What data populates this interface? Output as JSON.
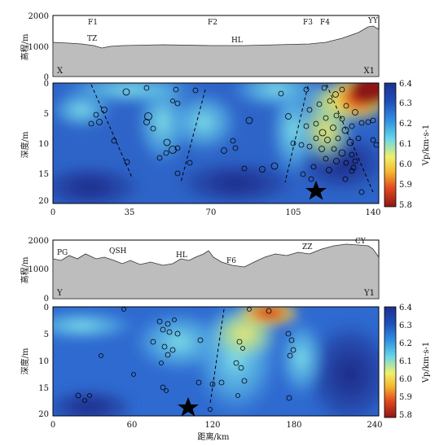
{
  "figure": {
    "panel_top": {
      "profile_name_left": "X",
      "profile_name_right": "X1",
      "elevation_label": "高程/m",
      "depth_label": "深度/m",
      "elevation_ticks": [
        "2000",
        "1000",
        "0"
      ],
      "depth_ticks": [
        "0",
        "5",
        "10",
        "15",
        "20"
      ],
      "x_ticks": [
        "0",
        "35",
        "70",
        "105",
        "140"
      ],
      "faults": [
        "F1",
        "F2",
        "F3",
        "F4"
      ],
      "places": [
        "TZ",
        "HL",
        "YY"
      ],
      "colorbar_label": "Vp/km·s-1",
      "colorbar_ticks": [
        "6.4",
        "6.3",
        "6.2",
        "6.1",
        "6.0",
        "5.9",
        "5.8"
      ]
    },
    "panel_bottom": {
      "profile_name_left": "Y",
      "profile_name_right": "Y1",
      "elevation_label": "高程/m",
      "depth_label": "深度/m",
      "elevation_ticks": [
        "2000",
        "1000",
        "0"
      ],
      "depth_ticks": [
        "0",
        "5",
        "10",
        "15",
        "20"
      ],
      "x_ticks": [
        "0",
        "60",
        "120",
        "180",
        "240"
      ],
      "xlabel": "距离/km",
      "faults": [
        "F6"
      ],
      "places": [
        "PG",
        "QSH",
        "HL",
        "ZZ",
        "CY"
      ],
      "colorbar_label": "Vp/km·s-1",
      "colorbar_ticks": [
        "6.4",
        "6.3",
        "6.2",
        "6.1",
        "6.0",
        "5.9",
        "5.8"
      ]
    }
  }
}
